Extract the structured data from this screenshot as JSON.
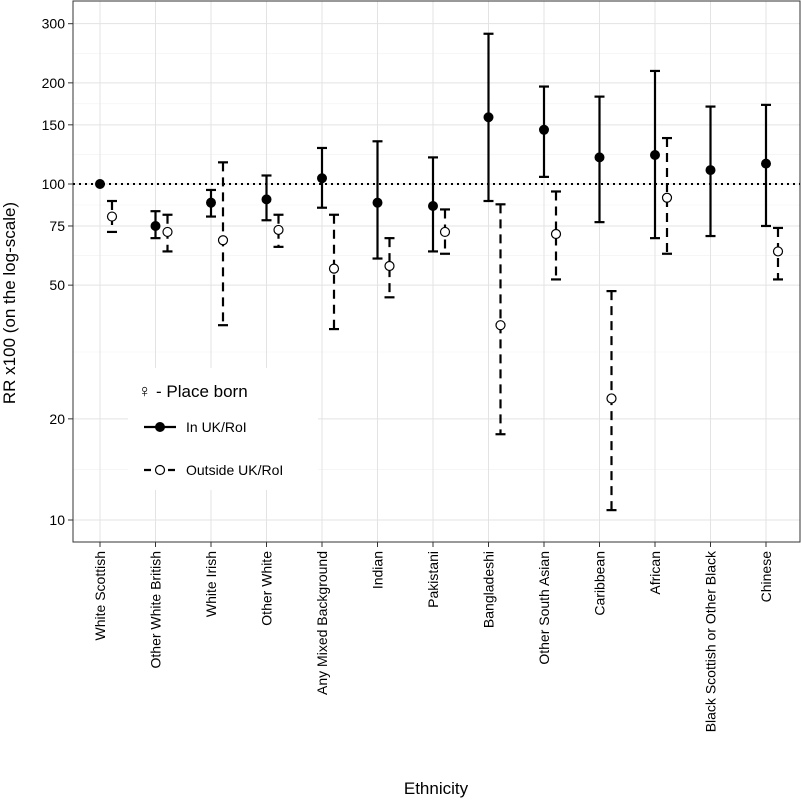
{
  "chart_data": {
    "type": "scatter",
    "subtype": "point-range",
    "title": "",
    "xlabel": "Ethnicity",
    "ylabel": "RR x100 (on the log-scale)",
    "y_scale": "log",
    "ylim": [
      9,
      360
    ],
    "y_ticks": [
      10,
      20,
      50,
      75,
      100,
      150,
      200,
      300
    ],
    "y_tick_labels": [
      "10",
      "20",
      "50",
      "75",
      "100",
      "150",
      "200",
      "300"
    ],
    "grid": true,
    "reference_line": {
      "y": 100,
      "style": "dotted"
    },
    "categories": [
      "White Scottish",
      "Other White British",
      "White Irish",
      "Other White",
      "Any Mixed Background",
      "Indian",
      "Pakistani",
      "Bangladeshi",
      "Other South Asian",
      "Caribbean",
      "African",
      "Black Scottish or Other Black",
      "Chinese"
    ],
    "legend": {
      "title": "- Place born",
      "title_symbol": "♀",
      "placement": "inside-left",
      "entries": [
        "In UK/RoI",
        "Outside UK/RoI"
      ]
    },
    "series": [
      {
        "name": "In UK/RoI",
        "marker": "filled-circle",
        "line": "solid",
        "values": [
          100,
          75,
          88,
          90,
          104,
          88,
          86,
          158,
          145,
          120,
          122,
          110,
          115
        ],
        "lower": [
          null,
          69,
          80,
          78,
          85,
          60,
          63,
          89,
          105,
          77,
          69,
          70,
          75
        ],
        "upper": [
          null,
          83,
          96,
          106,
          128,
          134,
          120,
          280,
          195,
          182,
          217,
          170,
          172
        ]
      },
      {
        "name": "Outside UK/RoI",
        "marker": "open-circle",
        "line": "dashed",
        "values": [
          80,
          72,
          68,
          73,
          56,
          57,
          72,
          38,
          71,
          23,
          91,
          63
        ],
        "lower": [
          72,
          63,
          38,
          65,
          37,
          46,
          62,
          18,
          52,
          10.7,
          62,
          52
        ],
        "upper": [
          89,
          81,
          116,
          81,
          81,
          69,
          84,
          87,
          95,
          48,
          137,
          74
        ],
        "category_index": [
          0,
          1,
          2,
          3,
          4,
          5,
          6,
          7,
          8,
          9,
          10,
          12
        ]
      }
    ]
  }
}
